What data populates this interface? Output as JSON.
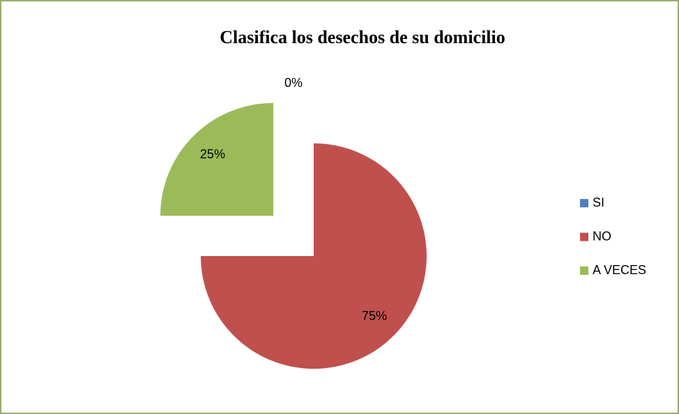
{
  "chart_data": {
    "type": "pie",
    "title": "Clasifica los desechos de su domicilio",
    "categories": [
      "SI",
      "NO",
      "A VECES"
    ],
    "values": [
      0,
      75,
      25
    ],
    "value_labels": [
      "0%",
      "75%",
      "25%"
    ],
    "colors": [
      "#4f81bd",
      "#c0504d",
      "#9bbb59"
    ],
    "legend": "right"
  }
}
